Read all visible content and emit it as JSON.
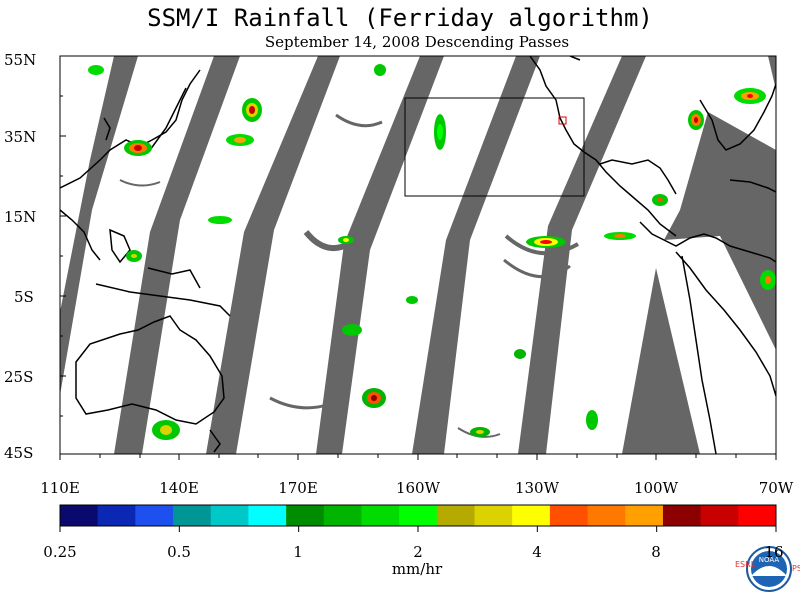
{
  "title": "SSM/I Rainfall (Ferriday algorithm)",
  "subtitle": "September 14, 2008  Descending Passes",
  "latitude_labels": [
    "55N",
    "35N",
    "15N",
    "5S",
    "25S",
    "45S"
  ],
  "longitude_labels": [
    "110E",
    "140E",
    "170E",
    "160W",
    "130W",
    "100W",
    "70W"
  ],
  "colorbar": {
    "tick_labels": [
      "0.25",
      "0.5",
      "1",
      "2",
      "4",
      "8",
      "16"
    ],
    "unit": "mm/hr",
    "colors": [
      "#0a0a6e",
      "#0a28b4",
      "#1e50f0",
      "#009696",
      "#00c8c8",
      "#00ffff",
      "#008c00",
      "#00b400",
      "#00dc00",
      "#00ff00",
      "#b4aa00",
      "#dcd200",
      "#ffff00",
      "#ff5000",
      "#ff7800",
      "#ffa000",
      "#8c0000",
      "#c80000",
      "#ff0000"
    ]
  },
  "map": {
    "swath_color": "#666666",
    "land_outline_color": "#000000"
  },
  "logo": {
    "left_text": "ESRL",
    "right_text": "PSD",
    "badge_text": "NOAA"
  }
}
